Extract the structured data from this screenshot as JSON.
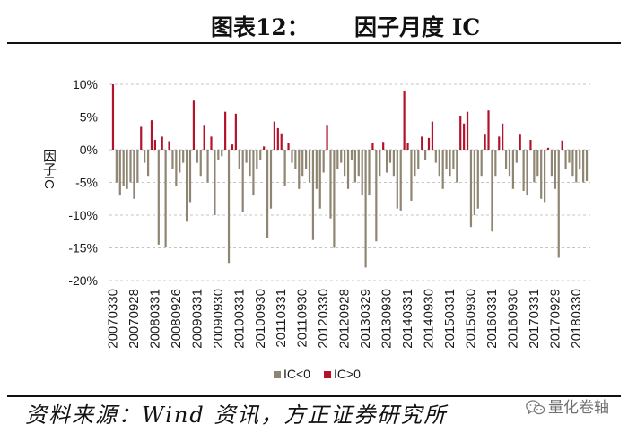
{
  "header": {
    "figure_label": "图表12：",
    "title": "因子月度 IC"
  },
  "chart_data": {
    "type": "bar",
    "ylabel": "因子IC",
    "ylim": [
      -20,
      10
    ],
    "yticks": [
      10,
      5,
      0,
      -5,
      -10,
      -15,
      -20
    ],
    "ytick_labels": [
      "10%",
      "5%",
      "0%",
      "-5%",
      "-10%",
      "-15%",
      "-20%"
    ],
    "grid": true,
    "legend_position": "bottom",
    "legend": [
      {
        "name": "IC<0",
        "color": "#8f8573"
      },
      {
        "name": "IC>0",
        "color": "#b2132b"
      }
    ],
    "categories": [
      "20070330",
      "",
      "",
      "",
      "",
      "",
      "20070928",
      "",
      "",
      "",
      "",
      "",
      "20080331",
      "",
      "",
      "",
      "",
      "",
      "20080926",
      "",
      "",
      "",
      "",
      "",
      "20090331",
      "",
      "",
      "",
      "",
      "",
      "20090930",
      "",
      "",
      "",
      "",
      "",
      "20100331",
      "",
      "",
      "",
      "",
      "",
      "20100930",
      "",
      "",
      "",
      "",
      "",
      "20110331",
      "",
      "",
      "",
      "",
      "",
      "20110930",
      "",
      "",
      "",
      "",
      "",
      "20120330",
      "",
      "",
      "",
      "",
      "",
      "20120928",
      "",
      "",
      "",
      "",
      "",
      "20130329",
      "",
      "",
      "",
      "",
      "",
      "20130930",
      "",
      "",
      "",
      "",
      "",
      "20140331",
      "",
      "",
      "",
      "",
      "",
      "20140930",
      "",
      "",
      "",
      "",
      "",
      "20150331",
      "",
      "",
      "",
      "",
      "",
      "20150930",
      "",
      "",
      "",
      "",
      "",
      "20160331",
      "",
      "",
      "",
      "",
      "",
      "20160930",
      "",
      "",
      "",
      "",
      "",
      "20170331",
      "",
      "",
      "",
      "",
      "",
      "20170929",
      "",
      "",
      "",
      "",
      "",
      "20180330",
      "",
      "",
      ""
    ],
    "values": [
      10,
      -5,
      -7,
      -5.5,
      -6,
      -5,
      -7.5,
      -5,
      3.5,
      -2,
      -4,
      4.5,
      1.5,
      -14.5,
      2,
      -14.8,
      1.3,
      -3,
      -5.5,
      -3.5,
      -2,
      -11,
      -8,
      7.5,
      -2,
      -4,
      3.8,
      -5,
      2,
      -10,
      -1.5,
      -1,
      5.8,
      -17.3,
      0.8,
      5.5,
      -3,
      -9.5,
      -2,
      -4,
      -7,
      -3,
      -1.5,
      0.5,
      -13.5,
      -9,
      4.3,
      3.3,
      2.5,
      -5.5,
      1,
      -2,
      -3,
      -6,
      -4,
      -3,
      -5,
      -13.8,
      -6,
      -9,
      -3.5,
      3.8,
      -10.5,
      -15,
      -3,
      -2,
      -4,
      -6,
      -1.5,
      -5,
      -4,
      -7,
      -18,
      -7,
      1,
      -14,
      -4,
      1.2,
      -3.5,
      -2,
      -4,
      -9,
      -9.3,
      9,
      1,
      -7.8,
      -4,
      -3,
      2,
      -1.5,
      1.8,
      4.3,
      -2,
      -4,
      -6,
      -3,
      -4,
      -3,
      -5,
      5.2,
      4,
      5.8,
      -11.8,
      -10,
      -9,
      -4,
      2.3,
      6,
      -12.5,
      -4,
      2,
      4,
      -3,
      -4,
      -6,
      -2,
      2.3,
      -6.3,
      -7,
      1.5,
      -5,
      -4,
      -7.5,
      -8,
      0.3,
      -4,
      -6,
      -16.5,
      1.4,
      -3,
      -2,
      -4,
      -5,
      -3,
      -5,
      -4.8
    ]
  },
  "footer": {
    "source": "资料来源：Wind 资讯，方正证券研究所",
    "watermark": "量化卷轴",
    "watermark_icon": "wechat-icon"
  }
}
